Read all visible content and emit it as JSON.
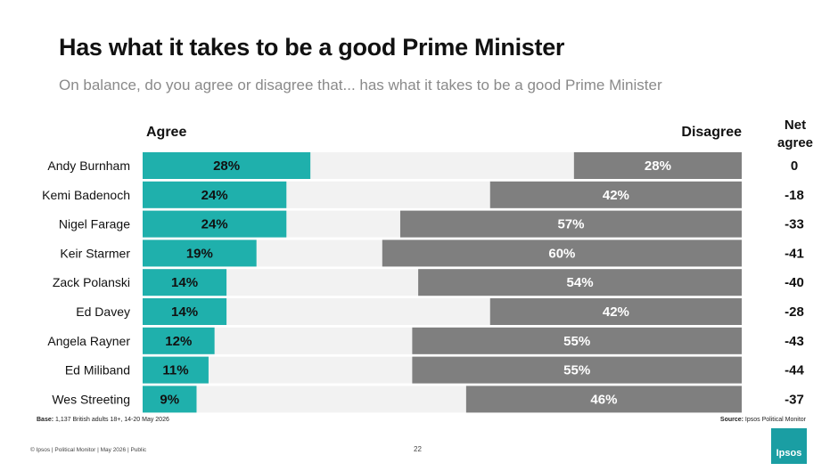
{
  "title": "Has what it takes to be a good Prime Minister",
  "subtitle": "On balance, do you agree or disagree that... has what it takes to be a good Prime Minister",
  "headers": {
    "agree": "Agree",
    "disagree": "Disagree",
    "net_line1": "Net",
    "net_line2": "agree"
  },
  "colors": {
    "agree": "#1fb0ac",
    "disagree": "#7f7f7f",
    "track": "#f2f2f2"
  },
  "chart_data": {
    "type": "bar",
    "categories": [
      "Andy Burnham",
      "Kemi Badenoch",
      "Nigel Farage",
      "Keir Starmer",
      "Zack Polanski",
      "Ed Davey",
      "Angela Rayner",
      "Ed Miliband",
      "Wes Streeting"
    ],
    "series": [
      {
        "name": "Agree",
        "values": [
          28,
          24,
          24,
          19,
          14,
          14,
          12,
          11,
          9
        ]
      },
      {
        "name": "Disagree",
        "values": [
          28,
          42,
          57,
          60,
          54,
          42,
          55,
          55,
          46
        ]
      }
    ],
    "net_agree": [
      "0",
      "-18",
      "-33",
      "-41",
      "-40",
      "-28",
      "-43",
      "-44",
      "-37"
    ]
  },
  "footnotes": {
    "base_label": "Base:",
    "base_text": " 1,137 British adults 18+, 14-20 May 2026",
    "source_label": "Source:",
    "source_text": " Ipsos Political Monitor"
  },
  "footer": {
    "left": "© Ipsos | Political Monitor | May 2026 | Public",
    "page": "22",
    "logo": "Ipsos"
  }
}
